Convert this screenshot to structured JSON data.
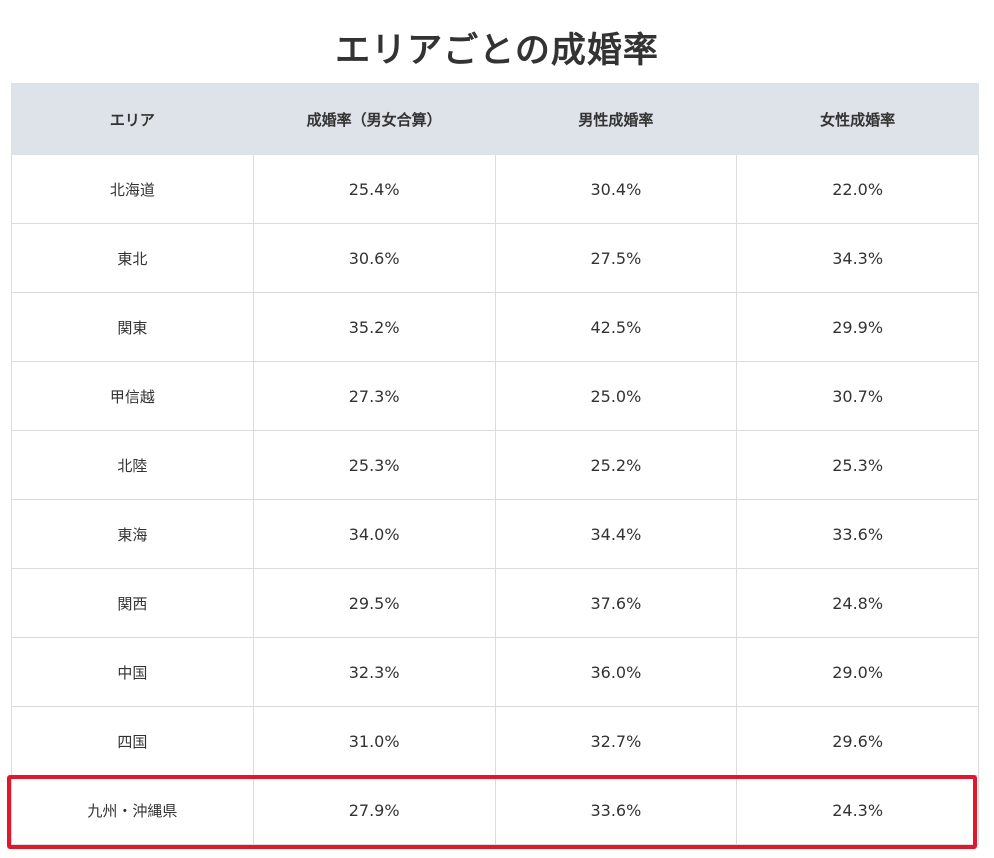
{
  "title": "エリアごとの成婚率",
  "table": {
    "headers": [
      "エリア",
      "成婚率（男女合算）",
      "男性成婚率",
      "女性成婚率"
    ],
    "rows": [
      {
        "area": "北海道",
        "total": "25.4%",
        "male": "30.4%",
        "female": "22.0%"
      },
      {
        "area": "東北",
        "total": "30.6%",
        "male": "27.5%",
        "female": "34.3%"
      },
      {
        "area": "関東",
        "total": "35.2%",
        "male": "42.5%",
        "female": "29.9%"
      },
      {
        "area": "甲信越",
        "total": "27.3%",
        "male": "25.0%",
        "female": "30.7%"
      },
      {
        "area": "北陸",
        "total": "25.3%",
        "male": "25.2%",
        "female": "25.3%"
      },
      {
        "area": "東海",
        "total": "34.0%",
        "male": "34.4%",
        "female": "33.6%"
      },
      {
        "area": "関西",
        "total": "29.5%",
        "male": "37.6%",
        "female": "24.8%"
      },
      {
        "area": "中国",
        "total": "32.3%",
        "male": "36.0%",
        "female": "29.0%"
      },
      {
        "area": "四国",
        "total": "31.0%",
        "male": "32.7%",
        "female": "29.6%"
      },
      {
        "area": "九州・沖縄県",
        "total": "27.9%",
        "male": "33.6%",
        "female": "24.3%"
      }
    ]
  },
  "highlight": {
    "row": "九州・沖縄県",
    "color": "#e0182d"
  },
  "colors": {
    "header_bg": "#dde3e8",
    "text": "#333333",
    "border": "#dcdcdc"
  }
}
